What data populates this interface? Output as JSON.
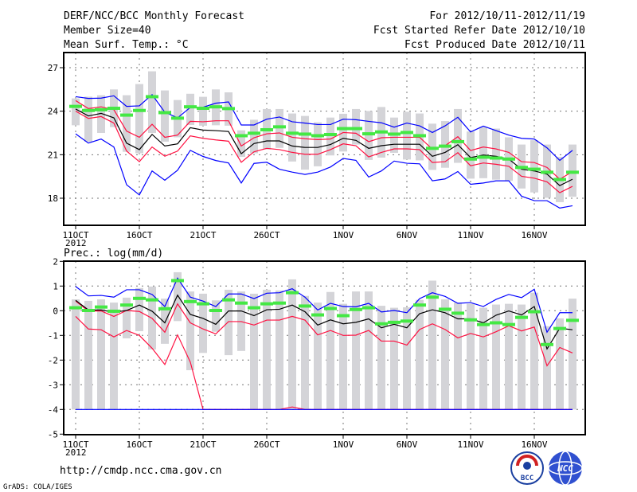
{
  "header": {
    "title": "DERF/NCC/BCC Monthly Forecast",
    "member_size": "Member Size=40",
    "variable": "Mean Surf. Temp.: °C",
    "period": "For 2012/10/11-2012/11/19",
    "started": "Fcst Started Refer Date 2012/10/10",
    "produced": "Fcst Produced Date 2012/10/11"
  },
  "footer": {
    "url": "http://cmdp.ncc.cma.gov.cn",
    "credit": "GrADS: COLA/IGES",
    "logo_left": "BCC",
    "logo_right": "NCC"
  },
  "colors": {
    "max_min": "#0000ff",
    "spread": "#ff1040",
    "mean": "#000000",
    "marker": "#44e844",
    "range": "#d4d4d8"
  },
  "chart_data": [
    {
      "type": "line",
      "title": "Mean Surf. Temp.: °C",
      "x_start": "2012/10/11",
      "days": 40,
      "xtick_labels": [
        {
          "day": 0,
          "label": "11OCT"
        },
        {
          "day": 5,
          "label": "16OCT"
        },
        {
          "day": 10,
          "label": "21OCT"
        },
        {
          "day": 15,
          "label": "26OCT"
        },
        {
          "day": 21,
          "label": "1NOV"
        },
        {
          "day": 26,
          "label": "6NOV"
        },
        {
          "day": 31,
          "label": "11NOV"
        },
        {
          "day": 36,
          "label": "16NOV"
        }
      ],
      "year_label": "2012",
      "yticks": [
        27,
        24,
        21,
        18
      ],
      "ylim": [
        16.1,
        28.0
      ],
      "grid": true,
      "series": [
        {
          "name": "max",
          "color": "max_min",
          "values": [
            25.0,
            24.88,
            24.9,
            25.06,
            24.33,
            24.37,
            25.14,
            23.93,
            23.54,
            24.26,
            24.27,
            24.55,
            24.64,
            23.05,
            23.05,
            23.45,
            23.6,
            23.27,
            23.18,
            23.08,
            23.08,
            23.45,
            23.41,
            23.3,
            23.2,
            22.9,
            23.18,
            22.99,
            22.53,
            22.99,
            23.58,
            22.57,
            22.97,
            22.66,
            22.35,
            22.13,
            22.08,
            21.47,
            20.61,
            21.3
          ]
        },
        {
          "name": "upper",
          "color": "spread",
          "values": [
            24.73,
            24.18,
            24.3,
            24.1,
            22.63,
            22.2,
            23.1,
            22.2,
            22.35,
            23.3,
            23.27,
            23.34,
            23.34,
            21.6,
            22.17,
            22.44,
            22.5,
            22.2,
            22.1,
            22.04,
            22.08,
            22.53,
            22.48,
            21.9,
            22.17,
            22.2,
            22.2,
            22.2,
            21.38,
            21.62,
            22.24,
            21.29,
            21.53,
            21.4,
            21.16,
            20.52,
            20.46,
            20.12,
            19.31,
            19.84
          ]
        },
        {
          "name": "mean",
          "color": "mean",
          "values": [
            24.15,
            23.67,
            23.85,
            23.54,
            21.8,
            21.35,
            22.4,
            21.6,
            21.75,
            22.86,
            22.7,
            22.66,
            22.6,
            21.07,
            21.77,
            21.95,
            21.95,
            21.6,
            21.5,
            21.5,
            21.7,
            22.13,
            21.99,
            21.44,
            21.62,
            21.72,
            21.72,
            21.72,
            20.89,
            21.16,
            21.69,
            20.8,
            20.98,
            20.89,
            20.7,
            20.0,
            19.88,
            19.66,
            18.87,
            19.31
          ]
        },
        {
          "name": "lower",
          "color": "spread",
          "values": [
            24.0,
            23.5,
            23.63,
            23.18,
            21.25,
            20.52,
            21.53,
            20.9,
            21.25,
            22.3,
            22.13,
            22.02,
            21.93,
            20.48,
            21.2,
            21.44,
            21.35,
            21.16,
            21.03,
            21.03,
            21.35,
            21.75,
            21.62,
            20.85,
            21.16,
            21.4,
            21.4,
            21.35,
            20.46,
            20.52,
            21.14,
            20.24,
            20.43,
            20.34,
            20.2,
            19.51,
            19.38,
            19.13,
            18.38,
            18.82
          ]
        },
        {
          "name": "min",
          "color": "max_min",
          "values": [
            22.44,
            21.8,
            22.08,
            21.53,
            18.93,
            18.23,
            19.88,
            19.24,
            19.93,
            21.3,
            20.88,
            20.6,
            20.43,
            19.05,
            20.4,
            20.48,
            20.0,
            19.8,
            19.64,
            19.8,
            20.15,
            20.74,
            20.61,
            19.46,
            19.88,
            20.56,
            20.41,
            20.37,
            19.2,
            19.33,
            19.84,
            18.96,
            19.05,
            19.2,
            19.2,
            18.14,
            17.83,
            17.83,
            17.32,
            17.48
          ]
        }
      ],
      "marker": [
        24.33,
        24.05,
        24.1,
        24.2,
        23.73,
        24.05,
        25.0,
        23.9,
        23.52,
        24.3,
        24.2,
        24.3,
        24.18,
        22.31,
        22.48,
        22.72,
        22.92,
        22.48,
        22.42,
        22.31,
        22.39,
        22.8,
        22.8,
        22.44,
        22.57,
        22.42,
        22.53,
        22.31,
        21.44,
        21.59,
        21.9,
        20.7,
        20.83,
        20.77,
        20.7,
        20.12,
        20.0,
        19.79,
        19.29,
        19.79
      ],
      "range_hi": [
        24.88,
        25.0,
        25.1,
        25.5,
        25.1,
        25.87,
        26.75,
        25.43,
        24.77,
        25.2,
        24.99,
        25.5,
        25.3,
        22.68,
        23.41,
        24.15,
        24.15,
        23.84,
        23.67,
        23.23,
        23.56,
        23.82,
        24.15,
        24.01,
        24.29,
        23.56,
        23.96,
        23.84,
        23.14,
        23.32,
        24.15,
        22.6,
        22.9,
        22.8,
        22.2,
        21.7,
        22.0,
        21.7,
        20.84,
        21.7
      ],
      "range_lo": [
        23.03,
        21.9,
        22.5,
        22.9,
        21.2,
        21.1,
        22.5,
        21.9,
        22.2,
        23.05,
        23.0,
        23.03,
        23.0,
        20.85,
        21.1,
        21.36,
        21.47,
        20.53,
        19.97,
        20.2,
        20.95,
        21.22,
        21.7,
        20.64,
        20.8,
        21.13,
        20.67,
        20.61,
        19.95,
        20.1,
        20.44,
        19.35,
        19.38,
        19.28,
        19.2,
        18.67,
        18.4,
        18.03,
        17.73,
        18.1
      ]
    },
    {
      "type": "line",
      "title": "Prec.: log(mm/d)",
      "x_start": "2012/10/11",
      "days": 40,
      "xtick_labels": [
        {
          "day": 0,
          "label": "11OCT"
        },
        {
          "day": 5,
          "label": "16OCT"
        },
        {
          "day": 10,
          "label": "21OCT"
        },
        {
          "day": 15,
          "label": "26OCT"
        },
        {
          "day": 21,
          "label": "1NOV"
        },
        {
          "day": 26,
          "label": "6NOV"
        },
        {
          "day": 31,
          "label": "11NOV"
        },
        {
          "day": 36,
          "label": "16NOV"
        }
      ],
      "year_label": "2012",
      "yticks": [
        2,
        1,
        0,
        -1,
        -2,
        -3,
        -4,
        -5
      ],
      "ylim": [
        -5,
        2
      ],
      "grid": true,
      "series": [
        {
          "name": "max",
          "color": "max_min",
          "values": [
            0.98,
            0.6,
            0.62,
            0.55,
            0.85,
            0.85,
            0.66,
            0.17,
            1.32,
            0.55,
            0.39,
            0.17,
            0.68,
            0.68,
            0.49,
            0.71,
            0.73,
            0.89,
            0.55,
            0.03,
            0.3,
            0.17,
            0.16,
            0.3,
            -0.05,
            0.01,
            -0.08,
            0.49,
            0.73,
            0.58,
            0.3,
            0.33,
            0.17,
            0.46,
            0.66,
            0.53,
            0.87,
            -0.87,
            -0.08,
            -0.08
          ]
        },
        {
          "name": "upper",
          "color": "spread",
          "values": [
            0.39,
            -0.01,
            -0.01,
            -0.23,
            0.01,
            -0.03,
            -0.31,
            -0.87,
            0.28,
            -0.49,
            -0.74,
            -0.94,
            -0.44,
            -0.44,
            -0.58,
            -0.38,
            -0.38,
            -0.23,
            -0.38,
            -0.98,
            -0.8,
            -1.0,
            -0.99,
            -0.8,
            -1.23,
            -1.23,
            -1.39,
            -0.76,
            -0.53,
            -0.76,
            -1.1,
            -0.92,
            -1.06,
            -0.85,
            -0.61,
            -0.82,
            -0.66,
            -2.23,
            -1.49,
            -1.71
          ]
        },
        {
          "name": "mean",
          "color": "mean",
          "values": [
            0.42,
            0.03,
            0.03,
            -0.06,
            0.01,
            0.23,
            -0.02,
            -0.49,
            0.63,
            -0.15,
            -0.31,
            -0.55,
            -0.01,
            -0.01,
            -0.2,
            0.04,
            0.06,
            0.23,
            -0.04,
            -0.58,
            -0.37,
            -0.53,
            -0.47,
            -0.33,
            -0.69,
            -0.55,
            -0.69,
            -0.12,
            0.04,
            -0.08,
            -0.33,
            -0.33,
            -0.49,
            -0.18,
            -0.01,
            -0.17,
            0.17,
            -1.55,
            -0.71,
            -0.77
          ]
        },
        {
          "name": "lower",
          "color": "spread",
          "values": [
            -0.23,
            -0.74,
            -0.77,
            -1.06,
            -0.8,
            -1.0,
            -1.52,
            -2.18,
            -0.98,
            -2.08,
            -4,
            -4,
            -4,
            -4,
            -4,
            -4,
            -4,
            -3.9,
            -4,
            -4,
            -4,
            -4,
            -4,
            -4,
            -4,
            -4,
            -4,
            -4,
            -4,
            -4,
            -4,
            -4,
            -4,
            -4,
            -4,
            -4,
            -4,
            -4,
            -4,
            -4
          ]
        },
        {
          "name": "min",
          "color": "max_min",
          "values": [
            -4,
            -4,
            -4,
            -4,
            -4,
            -4,
            -4,
            -4,
            -4,
            -4,
            -4,
            -4,
            -4,
            -4,
            -4,
            -4,
            -4,
            -4,
            -4,
            -4,
            -4,
            -4,
            -4,
            -4,
            -4,
            -4,
            -4,
            -4,
            -4,
            -4,
            -4,
            -4,
            -4,
            -4,
            -4,
            -4,
            -4,
            -4,
            -4,
            -4
          ]
        }
      ],
      "marker": [
        0.12,
        0.01,
        0.15,
        -0.02,
        0.23,
        0.5,
        0.44,
        0.08,
        1.22,
        0.37,
        0.28,
        0.01,
        0.44,
        0.31,
        0.12,
        0.28,
        0.31,
        0.73,
        0.19,
        -0.17,
        0.09,
        -0.2,
        0.05,
        0.12,
        -0.53,
        -0.47,
        -0.42,
        0.23,
        0.55,
        0.06,
        -0.1,
        -0.37,
        -0.56,
        -0.49,
        -0.56,
        -0.27,
        -0.04,
        -1.37,
        -0.72,
        -0.39
      ],
      "range_hi": [
        0.46,
        0.4,
        0.46,
        0.33,
        0.53,
        0.92,
        0.98,
        0.49,
        1.56,
        0.78,
        0.69,
        0.42,
        0.85,
        0.78,
        0.69,
        0.85,
        0.82,
        1.27,
        0.6,
        0.33,
        0.76,
        0.28,
        0.78,
        0.78,
        0.2,
        0.12,
        0.14,
        0.44,
        1.22,
        0.46,
        0.33,
        0.28,
        0.12,
        0.25,
        0.28,
        0.25,
        0.73,
        -0.63,
        -0.31,
        0.49
      ],
      "range_lo": [
        -4,
        -4,
        -4,
        -4,
        -1.12,
        -0.83,
        -1.57,
        -1.34,
        -0.42,
        -2.41,
        -1.71,
        -0.85,
        -1.8,
        -1.63,
        -4,
        -4,
        -4,
        -4,
        -4,
        -4,
        -4,
        -4,
        -4,
        -4,
        -4,
        -4,
        -4,
        -4,
        -4,
        -4,
        -4,
        -4,
        -4,
        -4,
        -4,
        -4,
        -4,
        -4,
        -4,
        -4
      ]
    }
  ]
}
